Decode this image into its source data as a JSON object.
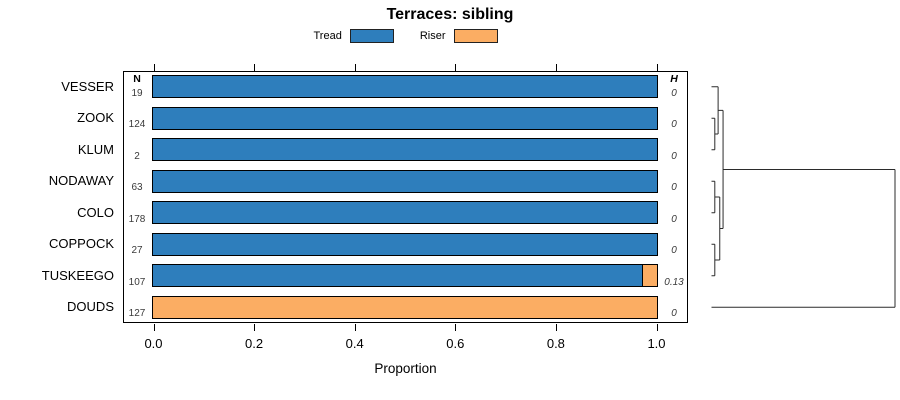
{
  "title": "Terraces: sibling",
  "legend": {
    "items": [
      {
        "label": "Tread",
        "color": "#2e7ebc"
      },
      {
        "label": "Riser",
        "color": "#fbad63"
      }
    ]
  },
  "columns": {
    "n_header": "N",
    "h_header": "H"
  },
  "x_axis": {
    "label": "Proportion",
    "tick_labels": [
      "0.0",
      "0.2",
      "0.4",
      "0.6",
      "0.8",
      "1.0"
    ],
    "tick_values": [
      0,
      0.2,
      0.4,
      0.6,
      0.8,
      1.0
    ]
  },
  "chart_data": {
    "type": "bar",
    "orientation": "horizontal",
    "stacked": true,
    "title": "Terraces: sibling",
    "xlabel": "Proportion",
    "xlim": [
      0,
      1
    ],
    "legend_position": "top",
    "grid": false,
    "categories": [
      "VESSER",
      "ZOOK",
      "KLUM",
      "NODAWAY",
      "COLO",
      "COPPOCK",
      "TUSKEEGO",
      "DOUDS"
    ],
    "n_values": [
      19,
      124,
      2,
      63,
      178,
      27,
      107,
      127
    ],
    "h_values": [
      "0",
      "0",
      "0",
      "0",
      "0",
      "0",
      "0.13",
      "0"
    ],
    "series": [
      {
        "name": "Tread",
        "color": "#2e7ebc",
        "values": [
          1.0,
          1.0,
          1.0,
          1.0,
          1.0,
          1.0,
          0.97,
          0.0
        ]
      },
      {
        "name": "Riser",
        "color": "#fbad63",
        "values": [
          0.0,
          0.0,
          0.0,
          0.0,
          0.0,
          0.0,
          0.03,
          1.0
        ]
      }
    ],
    "dendrogram": {
      "leaves": [
        "VESSER",
        "ZOOK",
        "KLUM",
        "NODAWAY",
        "COLO",
        "COPPOCK",
        "TUSKEEGO",
        "DOUDS"
      ],
      "merges": [
        {
          "id": "m1",
          "a": "ZOOK",
          "b": "KLUM",
          "height": 0.018
        },
        {
          "id": "m2",
          "a": "VESSER",
          "b": "m1",
          "height": 0.036
        },
        {
          "id": "m3",
          "a": "NODAWAY",
          "b": "COLO",
          "height": 0.018
        },
        {
          "id": "m4",
          "a": "COPPOCK",
          "b": "TUSKEEGO",
          "height": 0.018
        },
        {
          "id": "m5",
          "a": "m3",
          "b": "m4",
          "height": 0.045
        },
        {
          "id": "m6",
          "a": "m2",
          "b": "m5",
          "height": 0.063
        },
        {
          "id": "m7",
          "a": "m6",
          "b": "DOUDS",
          "height": 1.0
        }
      ]
    }
  }
}
